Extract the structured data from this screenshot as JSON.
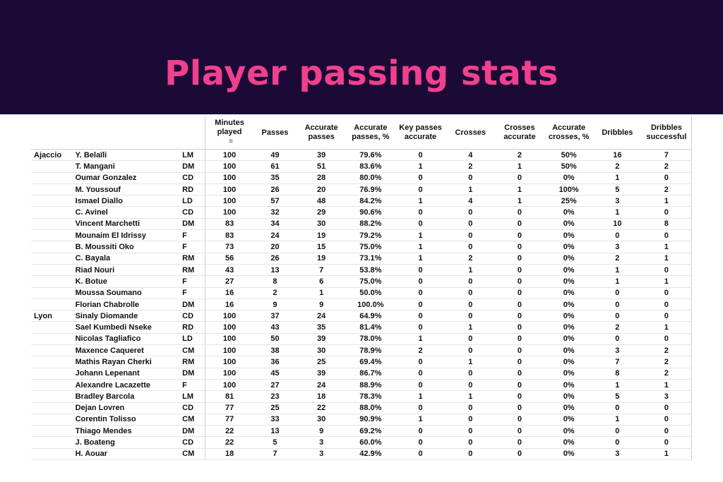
{
  "title": "Player passing stats",
  "colors": {
    "banner": "#1c0a36",
    "title": "#f0408e"
  },
  "table": {
    "columns": [
      "Minutes played",
      "Passes",
      "Accurate passes",
      "Accurate passes, %",
      "Key passes accurate",
      "Crosses",
      "Crosses accurate",
      "Accurate crosses, %",
      "Dribbles",
      "Dribbles successful"
    ],
    "sort_icon": "sort-icon",
    "rows": [
      {
        "team": "Ajaccio",
        "player": "Y. Belaïli",
        "pos": "LM",
        "v": [
          "100",
          "49",
          "39",
          "79.6%",
          "0",
          "4",
          "2",
          "50%",
          "16",
          "7"
        ]
      },
      {
        "team": "",
        "player": "T. Mangani",
        "pos": "DM",
        "v": [
          "100",
          "61",
          "51",
          "83.6%",
          "1",
          "2",
          "1",
          "50%",
          "2",
          "2"
        ]
      },
      {
        "team": "",
        "player": "Oumar Gonzalez",
        "pos": "CD",
        "v": [
          "100",
          "35",
          "28",
          "80.0%",
          "0",
          "0",
          "0",
          "0%",
          "1",
          "0"
        ]
      },
      {
        "team": "",
        "player": "M. Youssouf",
        "pos": "RD",
        "v": [
          "100",
          "26",
          "20",
          "76.9%",
          "0",
          "1",
          "1",
          "100%",
          "5",
          "2"
        ]
      },
      {
        "team": "",
        "player": "Ismael Diallo",
        "pos": "LD",
        "v": [
          "100",
          "57",
          "48",
          "84.2%",
          "1",
          "4",
          "1",
          "25%",
          "3",
          "1"
        ]
      },
      {
        "team": "",
        "player": "C. Avinel",
        "pos": "CD",
        "v": [
          "100",
          "32",
          "29",
          "90.6%",
          "0",
          "0",
          "0",
          "0%",
          "1",
          "0"
        ]
      },
      {
        "team": "",
        "player": "Vincent Marchetti",
        "pos": "DM",
        "v": [
          "83",
          "34",
          "30",
          "88.2%",
          "0",
          "0",
          "0",
          "0%",
          "10",
          "8"
        ]
      },
      {
        "team": "",
        "player": "Mounaim El Idrissy",
        "pos": "F",
        "v": [
          "83",
          "24",
          "19",
          "79.2%",
          "1",
          "0",
          "0",
          "0%",
          "0",
          "0"
        ]
      },
      {
        "team": "",
        "player": "B. Moussiti Oko",
        "pos": "F",
        "v": [
          "73",
          "20",
          "15",
          "75.0%",
          "1",
          "0",
          "0",
          "0%",
          "3",
          "1"
        ]
      },
      {
        "team": "",
        "player": "C. Bayala",
        "pos": "RM",
        "v": [
          "56",
          "26",
          "19",
          "73.1%",
          "1",
          "2",
          "0",
          "0%",
          "2",
          "1"
        ]
      },
      {
        "team": "",
        "player": "Riad Nouri",
        "pos": "RM",
        "v": [
          "43",
          "13",
          "7",
          "53.8%",
          "0",
          "1",
          "0",
          "0%",
          "1",
          "0"
        ]
      },
      {
        "team": "",
        "player": "K. Botue",
        "pos": "F",
        "v": [
          "27",
          "8",
          "6",
          "75.0%",
          "0",
          "0",
          "0",
          "0%",
          "1",
          "1"
        ]
      },
      {
        "team": "",
        "player": "Moussa Soumano",
        "pos": "F",
        "v": [
          "16",
          "2",
          "1",
          "50.0%",
          "0",
          "0",
          "0",
          "0%",
          "0",
          "0"
        ]
      },
      {
        "team": "",
        "player": "Florian Chabrolle",
        "pos": "DM",
        "v": [
          "16",
          "9",
          "9",
          "100.0%",
          "0",
          "0",
          "0",
          "0%",
          "0",
          "0"
        ]
      },
      {
        "team": "Lyon",
        "player": "Sinaly Diomande",
        "pos": "CD",
        "v": [
          "100",
          "37",
          "24",
          "64.9%",
          "0",
          "0",
          "0",
          "0%",
          "0",
          "0"
        ]
      },
      {
        "team": "",
        "player": "Sael Kumbedi Nseke",
        "pos": "RD",
        "v": [
          "100",
          "43",
          "35",
          "81.4%",
          "0",
          "1",
          "0",
          "0%",
          "2",
          "1"
        ]
      },
      {
        "team": "",
        "player": "Nicolas Tagliafico",
        "pos": "LD",
        "v": [
          "100",
          "50",
          "39",
          "78.0%",
          "1",
          "0",
          "0",
          "0%",
          "0",
          "0"
        ]
      },
      {
        "team": "",
        "player": "Maxence Caqueret",
        "pos": "CM",
        "v": [
          "100",
          "38",
          "30",
          "78.9%",
          "2",
          "0",
          "0",
          "0%",
          "3",
          "2"
        ]
      },
      {
        "team": "",
        "player": "Mathis Rayan Cherki",
        "pos": "RM",
        "v": [
          "100",
          "36",
          "25",
          "69.4%",
          "0",
          "1",
          "0",
          "0%",
          "7",
          "2"
        ]
      },
      {
        "team": "",
        "player": "Johann Lepenant",
        "pos": "DM",
        "v": [
          "100",
          "45",
          "39",
          "86.7%",
          "0",
          "0",
          "0",
          "0%",
          "8",
          "2"
        ]
      },
      {
        "team": "",
        "player": "Alexandre Lacazette",
        "pos": "F",
        "v": [
          "100",
          "27",
          "24",
          "88.9%",
          "0",
          "0",
          "0",
          "0%",
          "1",
          "1"
        ]
      },
      {
        "team": "",
        "player": "Bradley Barcola",
        "pos": "LM",
        "v": [
          "81",
          "23",
          "18",
          "78.3%",
          "1",
          "1",
          "0",
          "0%",
          "5",
          "3"
        ]
      },
      {
        "team": "",
        "player": "Dejan Lovren",
        "pos": "CD",
        "v": [
          "77",
          "25",
          "22",
          "88.0%",
          "0",
          "0",
          "0",
          "0%",
          "0",
          "0"
        ]
      },
      {
        "team": "",
        "player": "Corentin Tolisso",
        "pos": "CM",
        "v": [
          "77",
          "33",
          "30",
          "90.9%",
          "1",
          "0",
          "0",
          "0%",
          "1",
          "0"
        ]
      },
      {
        "team": "",
        "player": "Thiago Mendes",
        "pos": "DM",
        "v": [
          "22",
          "13",
          "9",
          "69.2%",
          "0",
          "0",
          "0",
          "0%",
          "0",
          "0"
        ]
      },
      {
        "team": "",
        "player": "J. Boateng",
        "pos": "CD",
        "v": [
          "22",
          "5",
          "3",
          "60.0%",
          "0",
          "0",
          "0",
          "0%",
          "0",
          "0"
        ]
      },
      {
        "team": "",
        "player": "H. Aouar",
        "pos": "CM",
        "v": [
          "18",
          "7",
          "3",
          "42.9%",
          "0",
          "0",
          "0",
          "0%",
          "3",
          "1"
        ]
      }
    ]
  }
}
